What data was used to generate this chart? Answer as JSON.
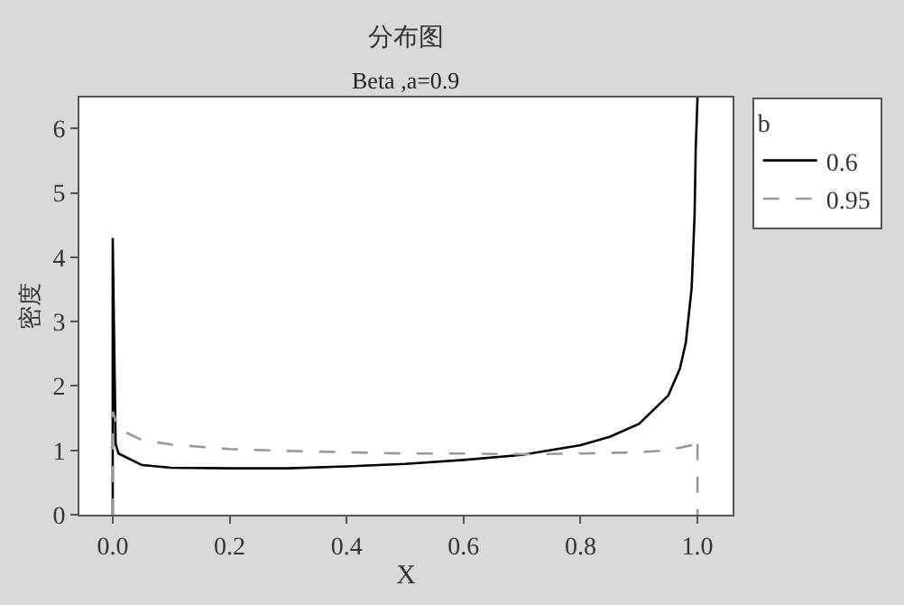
{
  "chart_data": {
    "type": "line",
    "title": "分布图",
    "subtitle": "Beta ,a=0.9",
    "xlabel": "X",
    "ylabel": "密度",
    "legend_title": "b",
    "xlim": [
      -0.057,
      1.06
    ],
    "xticks": [
      {
        "value": 0,
        "label": "0.0"
      },
      0.2,
      0.4,
      0.6,
      0.8,
      {
        "value": 1,
        "label": "1.0"
      }
    ],
    "ylim": [
      0,
      6.48
    ],
    "yticks": [
      0,
      1,
      2,
      3,
      4,
      5,
      6
    ],
    "legend": "top right",
    "marker": "none",
    "series": [
      {
        "name": "0.6",
        "color": "#000000",
        "line_style": "solid",
        "x": [
          0,
          0,
          0.005,
          0.01,
          0.05,
          0.1,
          0.2,
          0.3,
          0.4,
          0.5,
          0.6,
          0.7,
          0.8,
          0.85,
          0.9,
          0.95,
          0.97,
          0.98,
          0.99,
          0.995,
          0.997,
          1
        ],
        "values": [
          0,
          4.3,
          1.1,
          0.95,
          0.77,
          0.73,
          0.72,
          0.72,
          0.75,
          0.79,
          0.85,
          0.93,
          1.08,
          1.21,
          1.41,
          1.85,
          2.27,
          2.67,
          3.52,
          4.64,
          5.7,
          6.48
        ]
      },
      {
        "name": "0.95",
        "color": "#999999",
        "line_style": "dashed",
        "x": [
          0,
          0,
          0.01,
          0.05,
          0.1,
          0.2,
          0.3,
          0.4,
          0.5,
          0.6,
          0.7,
          0.8,
          0.9,
          0.95,
          0.99,
          0.999,
          1,
          1
        ],
        "values": [
          0,
          1.6,
          1.33,
          1.16,
          1.09,
          1.02,
          0.99,
          0.97,
          0.95,
          0.95,
          0.94,
          0.95,
          0.97,
          1.0,
          1.08,
          1.2,
          1.2,
          0
        ]
      }
    ]
  }
}
